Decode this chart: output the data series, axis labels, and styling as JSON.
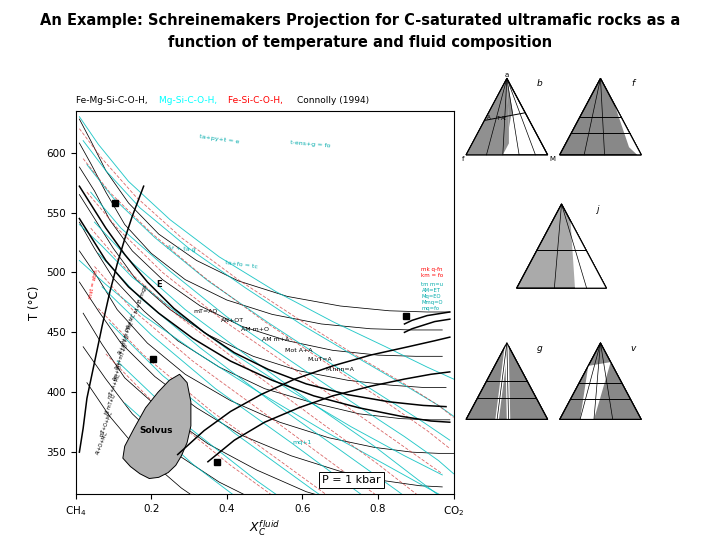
{
  "title_line1": "An Example: Schreinemakers Projection for C-saturated ultramafic rocks as a",
  "title_line2": "function of temperature and fluid composition",
  "title_font": "Courier New",
  "title_size": 10.5,
  "subtitle_parts": [
    "Fe-Mg-Si-C-O-H,  ",
    "Mg-Si-C-O-H,  ",
    "Fe-Si-C-O-H,  ",
    "Connolly (1994)"
  ],
  "subtitle_colors": [
    "black",
    "cyan",
    "red",
    "black"
  ],
  "bg_color": "#ffffff"
}
